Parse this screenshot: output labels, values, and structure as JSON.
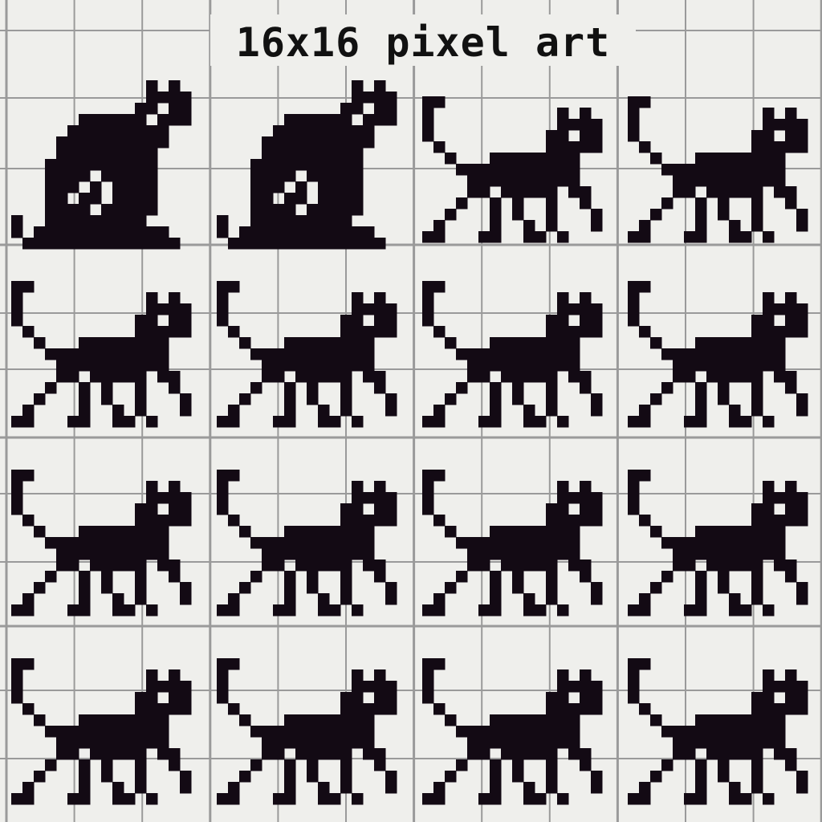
{
  "header": {
    "title": "16x16 pixel art"
  }
}
